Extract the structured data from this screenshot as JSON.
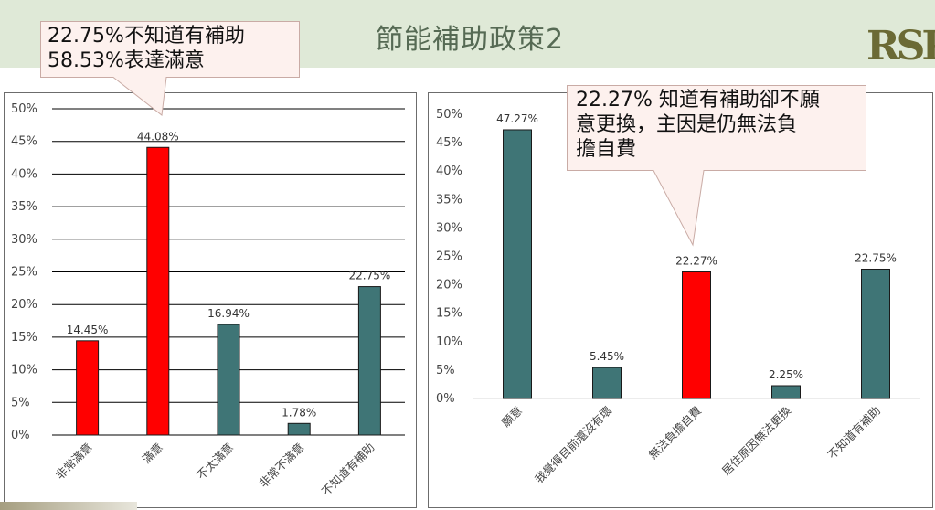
{
  "slide": {
    "title": "節能補助政策2",
    "logo_text": "RSPR"
  },
  "callouts": [
    {
      "lines": [
        "22.75%不知道有補助",
        "58.53%表達滿意"
      ]
    },
    {
      "lines": [
        "22.27% 知道有補助卻不願",
        "意更換，主因是仍無法負",
        "擔自費"
      ]
    }
  ],
  "colors": {
    "highlight": "#ff0000",
    "teal": "#3f7576",
    "callout_fill": "#fdf1ee",
    "callout_stroke": "#c9aba5",
    "grid": "#000000"
  },
  "chart_data": [
    {
      "type": "bar",
      "title": "",
      "xlabel": "",
      "ylabel": "",
      "ylim": [
        0,
        50
      ],
      "yticks": [
        "0%",
        "5%",
        "10%",
        "15%",
        "20%",
        "25%",
        "30%",
        "35%",
        "40%",
        "45%",
        "50%"
      ],
      "grid": true,
      "categories": [
        "非常滿意",
        "滿意",
        "不太滿意",
        "非常不滿意",
        "不知道有補助"
      ],
      "values": [
        14.45,
        44.08,
        16.94,
        1.78,
        22.75
      ],
      "data_labels": [
        "14.45%",
        "44.08%",
        "16.94%",
        "1.78%",
        "22.75%"
      ],
      "bar_colors": [
        "#ff0000",
        "#ff0000",
        "#3f7576",
        "#3f7576",
        "#3f7576"
      ]
    },
    {
      "type": "bar",
      "title": "",
      "xlabel": "",
      "ylabel": "",
      "ylim": [
        0,
        50
      ],
      "yticks": [
        "0%",
        "5%",
        "10%",
        "15%",
        "20%",
        "25%",
        "30%",
        "35%",
        "40%",
        "45%",
        "50%"
      ],
      "grid": false,
      "categories": [
        "願意",
        "我覺得目前還沒有壞",
        "無法負擔自費",
        "居住原因無法更換",
        "不知道有補助"
      ],
      "values": [
        47.27,
        5.45,
        22.27,
        2.25,
        22.75
      ],
      "data_labels": [
        "47.27%",
        "5.45%",
        "22.27%",
        "2.25%",
        "22.75%"
      ],
      "bar_colors": [
        "#3f7576",
        "#3f7576",
        "#ff0000",
        "#3f7576",
        "#3f7576"
      ]
    }
  ]
}
